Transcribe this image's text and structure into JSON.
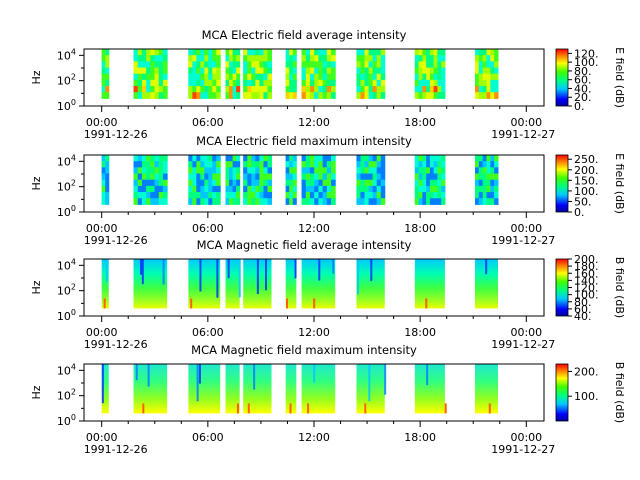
{
  "figure": {
    "background": "#ffffff"
  },
  "chart_data": [
    {
      "type": "heatmap",
      "title": "MCA  Electric field average intensity",
      "ylabel": "Hz",
      "yscale": "log",
      "y_ticks": [
        {
          "exp": "0"
        },
        {
          "exp": "2"
        },
        {
          "exp": "4"
        }
      ],
      "ylim": [
        1,
        31623
      ],
      "x_ticks": [
        "00:00",
        "06:00",
        "12:00",
        "18:00",
        "00:00"
      ],
      "x_date_left": "1991-12-26",
      "x_date_right": "1991-12-27",
      "xlim": [
        "1991-12-25T23:00",
        "1991-12-27T01:00"
      ],
      "colorbar": {
        "label": "E field (dB)",
        "ticks": [
          "0.",
          "20.",
          "40.",
          "60.",
          "80.",
          "100.",
          "120."
        ],
        "range": [
          0,
          130
        ]
      },
      "data_blocks_hours": [
        [
          0.0,
          0.4
        ],
        [
          1.8,
          3.7
        ],
        [
          4.9,
          6.7
        ],
        [
          7.0,
          7.8
        ],
        [
          8.0,
          9.6
        ],
        [
          10.4,
          11.0
        ],
        [
          11.3,
          13.2
        ],
        [
          14.4,
          16.0
        ],
        [
          17.7,
          19.4
        ],
        [
          21.1,
          22.4
        ]
      ],
      "colormap": "jet",
      "level": "mid-high"
    },
    {
      "type": "heatmap",
      "title": "MCA  Electric field maximum intensity",
      "ylabel": "Hz",
      "yscale": "log",
      "y_ticks": [
        {
          "exp": "0"
        },
        {
          "exp": "2"
        },
        {
          "exp": "4"
        }
      ],
      "ylim": [
        1,
        31623
      ],
      "x_ticks": [
        "00:00",
        "06:00",
        "12:00",
        "18:00",
        "00:00"
      ],
      "x_date_left": "1991-12-26",
      "x_date_right": "1991-12-27",
      "xlim": [
        "1991-12-25T23:00",
        "1991-12-27T01:00"
      ],
      "colorbar": {
        "label": "E field (dB)",
        "ticks": [
          "0.",
          "50.",
          "100.",
          "150.",
          "200.",
          "250."
        ],
        "range": [
          0,
          270
        ]
      },
      "data_blocks_hours": [
        [
          0.0,
          0.4
        ],
        [
          1.8,
          3.7
        ],
        [
          4.9,
          6.7
        ],
        [
          7.0,
          7.8
        ],
        [
          8.0,
          9.6
        ],
        [
          10.4,
          11.0
        ],
        [
          11.3,
          13.2
        ],
        [
          14.4,
          16.0
        ],
        [
          17.7,
          19.4
        ],
        [
          21.1,
          22.4
        ]
      ],
      "colormap": "jet",
      "level": "low-mid"
    },
    {
      "type": "heatmap",
      "title": "MCA  Magnetic field average intensity",
      "ylabel": "Hz",
      "yscale": "log",
      "y_ticks": [
        {
          "exp": "0"
        },
        {
          "exp": "2"
        },
        {
          "exp": "4"
        }
      ],
      "ylim": [
        1,
        31623
      ],
      "x_ticks": [
        "00:00",
        "06:00",
        "12:00",
        "18:00",
        "00:00"
      ],
      "x_date_left": "1991-12-26",
      "x_date_right": "1991-12-27",
      "xlim": [
        "1991-12-25T23:00",
        "1991-12-27T01:00"
      ],
      "colorbar": {
        "label": "B field (dB)",
        "ticks": [
          "40.",
          "60.",
          "80.",
          "100.",
          "120.",
          "140.",
          "160.",
          "180.",
          "200."
        ],
        "range": [
          40,
          200
        ]
      },
      "data_blocks_hours": [
        [
          0.0,
          0.4
        ],
        [
          1.8,
          3.7
        ],
        [
          4.9,
          6.7
        ],
        [
          7.0,
          7.8
        ],
        [
          8.0,
          9.6
        ],
        [
          10.4,
          11.0
        ],
        [
          11.3,
          13.2
        ],
        [
          14.4,
          16.0
        ],
        [
          17.7,
          19.4
        ],
        [
          21.1,
          22.4
        ]
      ],
      "colormap": "jet",
      "level": "gradient-low-freq-high"
    },
    {
      "type": "heatmap",
      "title": "MCA  Magnetic field maximum intensity",
      "ylabel": "Hz",
      "yscale": "log",
      "y_ticks": [
        {
          "exp": "0"
        },
        {
          "exp": "2"
        },
        {
          "exp": "4"
        }
      ],
      "ylim": [
        1,
        31623
      ],
      "x_ticks": [
        "00:00",
        "06:00",
        "12:00",
        "18:00",
        "00:00"
      ],
      "x_date_left": "1991-12-26",
      "x_date_right": "1991-12-27",
      "xlim": [
        "1991-12-25T23:00",
        "1991-12-27T01:00"
      ],
      "colorbar": {
        "label": "B field (dB)",
        "ticks": [
          "100.",
          "200."
        ],
        "range": [
          0,
          230
        ]
      },
      "data_blocks_hours": [
        [
          0.0,
          0.4
        ],
        [
          1.8,
          3.7
        ],
        [
          4.9,
          6.7
        ],
        [
          7.0,
          7.8
        ],
        [
          8.0,
          9.6
        ],
        [
          10.4,
          11.0
        ],
        [
          11.3,
          13.2
        ],
        [
          14.4,
          16.0
        ],
        [
          17.7,
          19.4
        ],
        [
          21.1,
          22.4
        ]
      ],
      "colormap": "jet",
      "level": "gradient-low-freq-high"
    }
  ]
}
